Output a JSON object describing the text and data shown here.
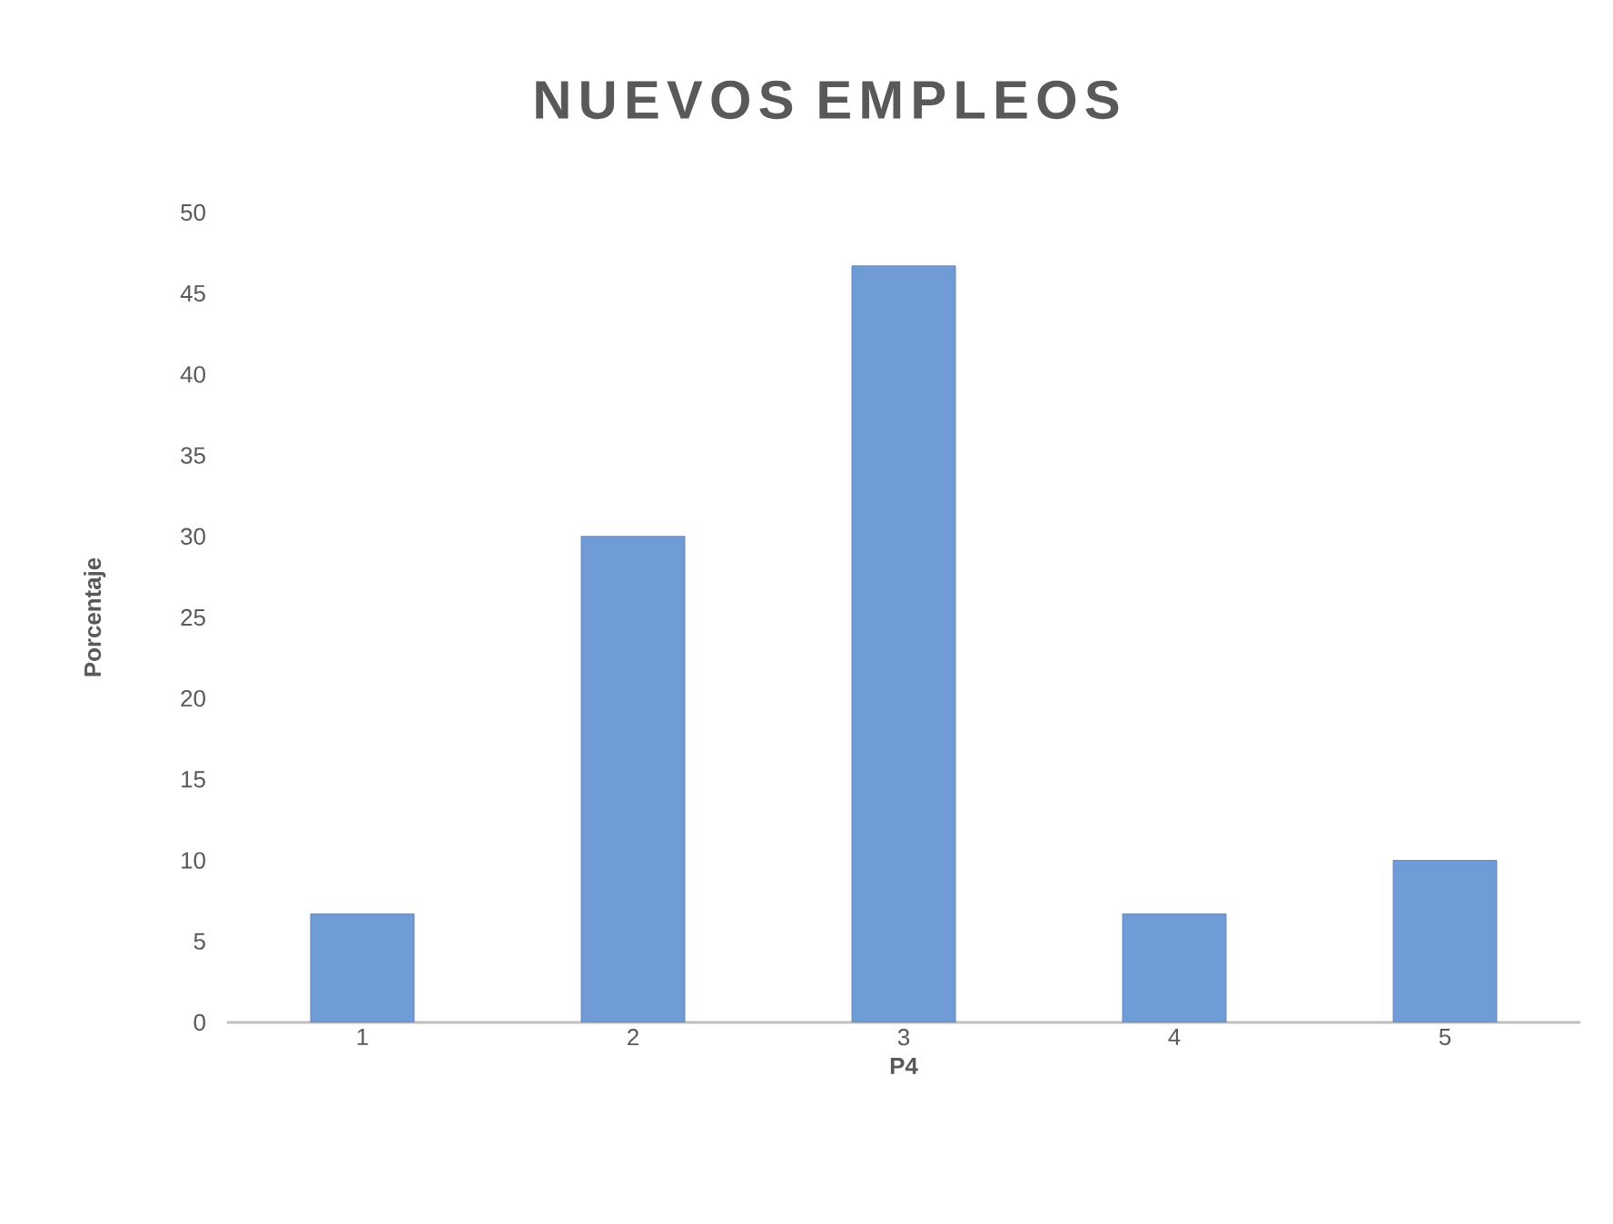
{
  "chart_data": {
    "type": "bar",
    "title": "NUEVOS EMPLEOS",
    "xlabel": "P4",
    "ylabel": "Porcentaje",
    "categories": [
      "1",
      "2",
      "3",
      "4",
      "5"
    ],
    "values": [
      6.7,
      30,
      46.7,
      6.7,
      10
    ],
    "color": "#6f9bd6",
    "ylim": [
      0,
      50
    ],
    "yticks": [
      0,
      5,
      10,
      15,
      20,
      25,
      30,
      35,
      40,
      45,
      50
    ]
  }
}
